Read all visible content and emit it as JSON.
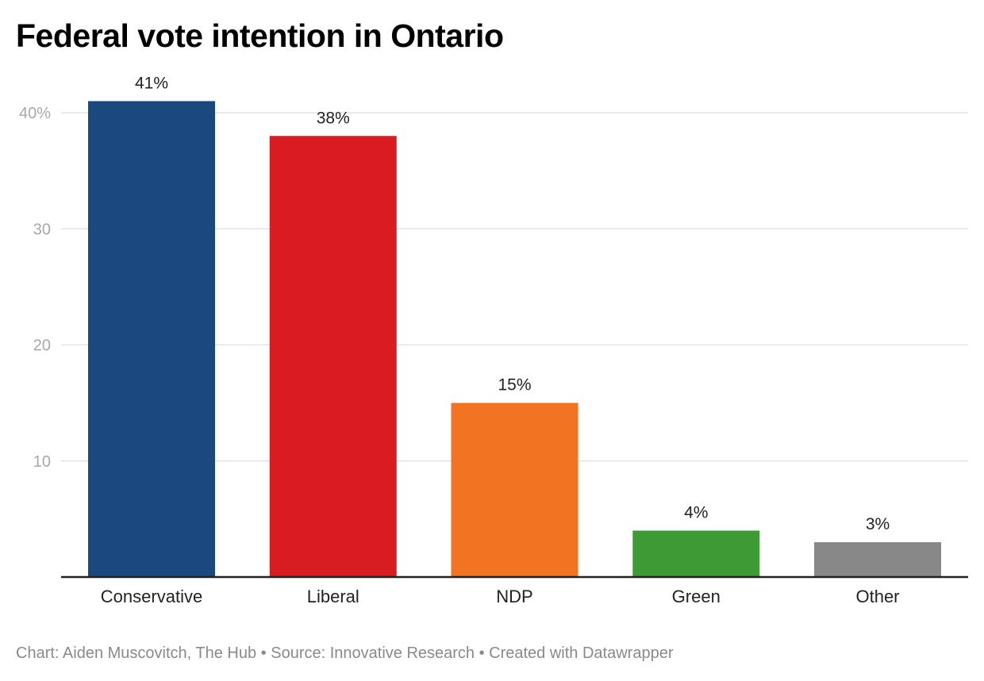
{
  "chart_data": {
    "type": "bar",
    "title": "Federal vote intention in Ontario",
    "xlabel": "",
    "ylabel": "",
    "categories": [
      "Conservative",
      "Liberal",
      "NDP",
      "Green",
      "Other"
    ],
    "values": [
      41,
      38,
      15,
      4,
      3
    ],
    "data_labels": [
      "41%",
      "38%",
      "15%",
      "4%",
      "3%"
    ],
    "colors": [
      "#1c4880",
      "#d91b22",
      "#f27321",
      "#3e9a35",
      "#888888"
    ],
    "ylim": [
      0,
      40
    ],
    "yticks": [
      10,
      20,
      30,
      40
    ],
    "ytick_labels": [
      "10",
      "20",
      "30",
      "40%"
    ],
    "grid": true,
    "legend": "none"
  },
  "footer": {
    "text": "Chart: Aiden Muscovitch, The Hub • Source: Innovative Research • Created with Datawrapper"
  }
}
